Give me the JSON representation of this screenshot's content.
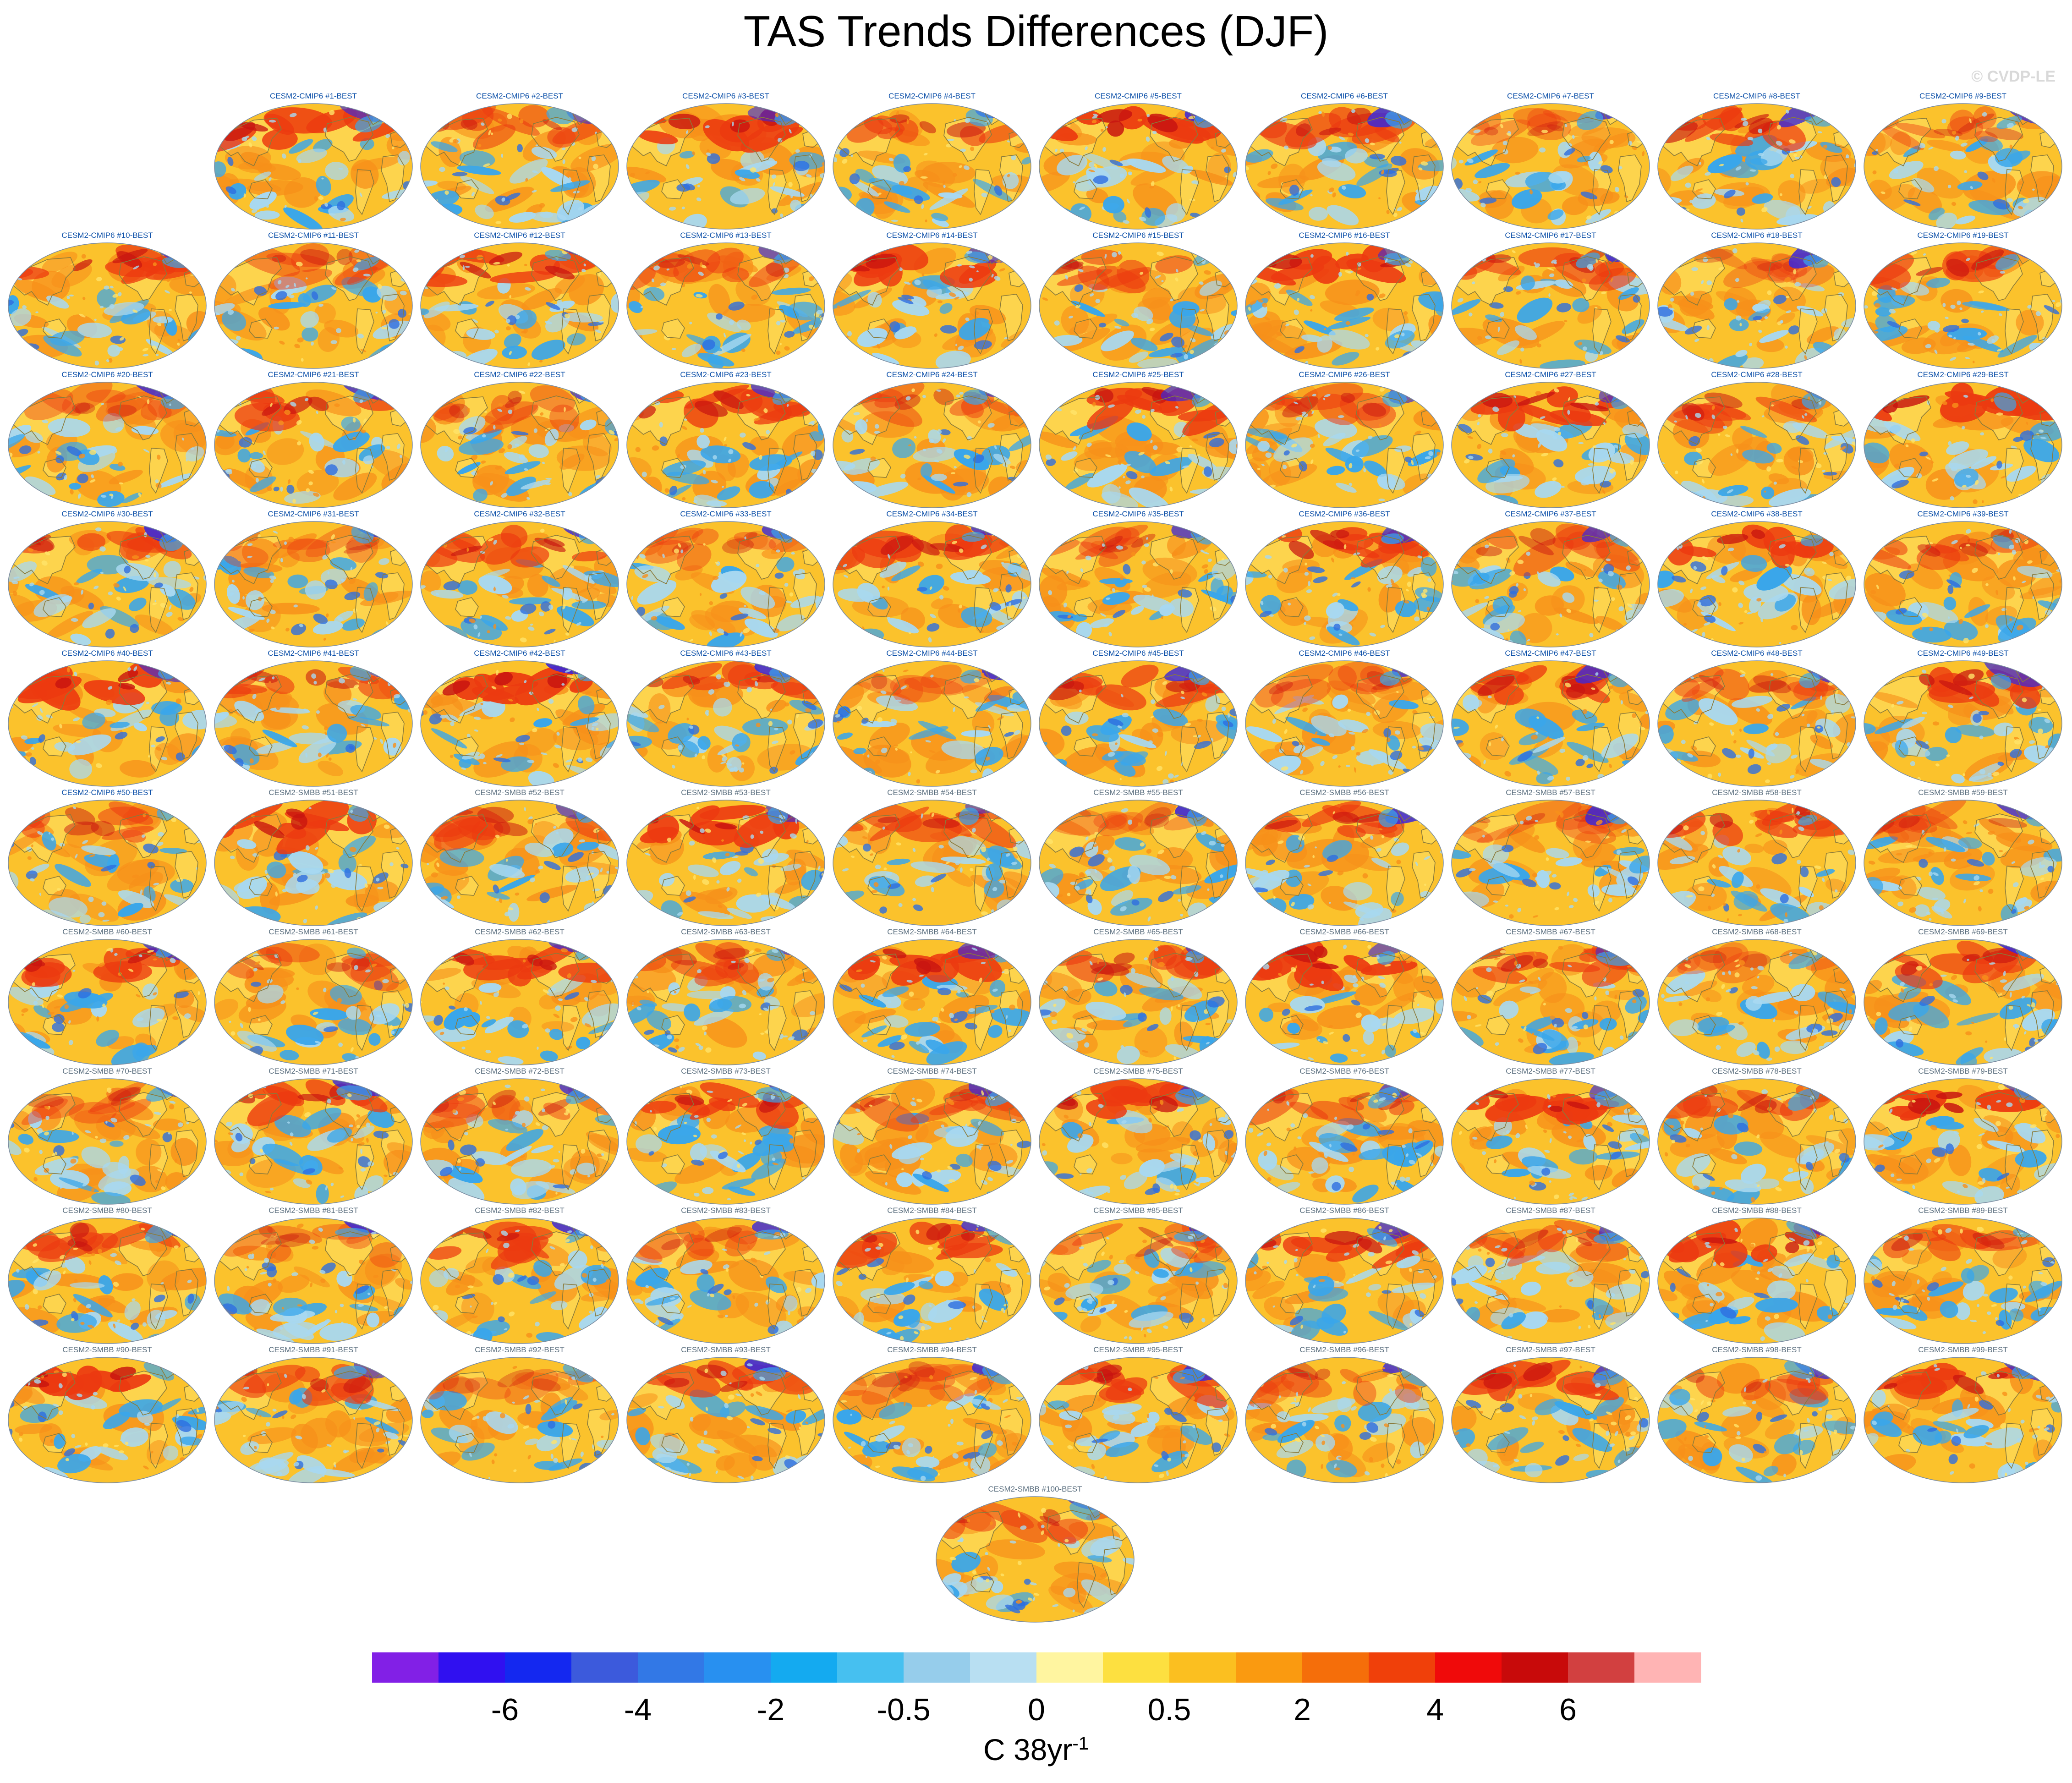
{
  "title": "TAS Trends Differences (DJF)",
  "watermark": "© CVDP-LE",
  "units": {
    "base": "C 38yr",
    "superscript": "-1"
  },
  "chart_data": {
    "type": "heatmap",
    "title": "TAS Trends Differences (DJF)",
    "panels": [
      "CESM2-CMIP6 #1-BEST",
      "CESM2-CMIP6 #2-BEST",
      "CESM2-CMIP6 #3-BEST",
      "CESM2-CMIP6 #4-BEST",
      "CESM2-CMIP6 #5-BEST",
      "CESM2-CMIP6 #6-BEST",
      "CESM2-CMIP6 #7-BEST",
      "CESM2-CMIP6 #8-BEST",
      "CESM2-CMIP6 #9-BEST",
      "CESM2-CMIP6 #10-BEST",
      "CESM2-CMIP6 #11-BEST",
      "CESM2-CMIP6 #12-BEST",
      "CESM2-CMIP6 #13-BEST",
      "CESM2-CMIP6 #14-BEST",
      "CESM2-CMIP6 #15-BEST",
      "CESM2-CMIP6 #16-BEST",
      "CESM2-CMIP6 #17-BEST",
      "CESM2-CMIP6 #18-BEST",
      "CESM2-CMIP6 #19-BEST",
      "CESM2-CMIP6 #20-BEST",
      "CESM2-CMIP6 #21-BEST",
      "CESM2-CMIP6 #22-BEST",
      "CESM2-CMIP6 #23-BEST",
      "CESM2-CMIP6 #24-BEST",
      "CESM2-CMIP6 #25-BEST",
      "CESM2-CMIP6 #26-BEST",
      "CESM2-CMIP6 #27-BEST",
      "CESM2-CMIP6 #28-BEST",
      "CESM2-CMIP6 #29-BEST",
      "CESM2-CMIP6 #30-BEST",
      "CESM2-CMIP6 #31-BEST",
      "CESM2-CMIP6 #32-BEST",
      "CESM2-CMIP6 #33-BEST",
      "CESM2-CMIP6 #34-BEST",
      "CESM2-CMIP6 #35-BEST",
      "CESM2-CMIP6 #36-BEST",
      "CESM2-CMIP6 #37-BEST",
      "CESM2-CMIP6 #38-BEST",
      "CESM2-CMIP6 #39-BEST",
      "CESM2-CMIP6 #40-BEST",
      "CESM2-CMIP6 #41-BEST",
      "CESM2-CMIP6 #42-BEST",
      "CESM2-CMIP6 #43-BEST",
      "CESM2-CMIP6 #44-BEST",
      "CESM2-CMIP6 #45-BEST",
      "CESM2-CMIP6 #46-BEST",
      "CESM2-CMIP6 #47-BEST",
      "CESM2-CMIP6 #48-BEST",
      "CESM2-CMIP6 #49-BEST",
      "CESM2-CMIP6 #50-BEST",
      "CESM2-SMBB #51-BEST",
      "CESM2-SMBB #52-BEST",
      "CESM2-SMBB #53-BEST",
      "CESM2-SMBB #54-BEST",
      "CESM2-SMBB #55-BEST",
      "CESM2-SMBB #56-BEST",
      "CESM2-SMBB #57-BEST",
      "CESM2-SMBB #58-BEST",
      "CESM2-SMBB #59-BEST",
      "CESM2-SMBB #60-BEST",
      "CESM2-SMBB #61-BEST",
      "CESM2-SMBB #62-BEST",
      "CESM2-SMBB #63-BEST",
      "CESM2-SMBB #64-BEST",
      "CESM2-SMBB #65-BEST",
      "CESM2-SMBB #66-BEST",
      "CESM2-SMBB #67-BEST",
      "CESM2-SMBB #68-BEST",
      "CESM2-SMBB #69-BEST",
      "CESM2-SMBB #70-BEST",
      "CESM2-SMBB #71-BEST",
      "CESM2-SMBB #72-BEST",
      "CESM2-SMBB #73-BEST",
      "CESM2-SMBB #74-BEST",
      "CESM2-SMBB #75-BEST",
      "CESM2-SMBB #76-BEST",
      "CESM2-SMBB #77-BEST",
      "CESM2-SMBB #78-BEST",
      "CESM2-SMBB #79-BEST",
      "CESM2-SMBB #80-BEST",
      "CESM2-SMBB #81-BEST",
      "CESM2-SMBB #82-BEST",
      "CESM2-SMBB #83-BEST",
      "CESM2-SMBB #84-BEST",
      "CESM2-SMBB #85-BEST",
      "CESM2-SMBB #86-BEST",
      "CESM2-SMBB #87-BEST",
      "CESM2-SMBB #88-BEST",
      "CESM2-SMBB #89-BEST",
      "CESM2-SMBB #90-BEST",
      "CESM2-SMBB #91-BEST",
      "CESM2-SMBB #92-BEST",
      "CESM2-SMBB #93-BEST",
      "CESM2-SMBB #94-BEST",
      "CESM2-SMBB #95-BEST",
      "CESM2-SMBB #96-BEST",
      "CESM2-SMBB #97-BEST",
      "CESM2-SMBB #98-BEST",
      "CESM2-SMBB #99-BEST",
      "CESM2-SMBB #100-BEST"
    ],
    "colorbar": {
      "label": "C 38yr-1",
      "tick_labels": [
        "-6",
        "-4",
        "-2",
        "-0.5",
        "0",
        "0.5",
        "2",
        "4",
        "6"
      ],
      "colors": [
        "#8220e6",
        "#3010f0",
        "#1428f0",
        "#3c5adc",
        "#3278e6",
        "#2890f0",
        "#14aaf0",
        "#46c0f0",
        "#96cdeb",
        "#b8dff2",
        "#fff5a0",
        "#fde040",
        "#fbbf20",
        "#fa9a10",
        "#f56e0a",
        "#f0400a",
        "#f00a0a",
        "#c80a0a",
        "#d24040",
        "#ffb4b4"
      ]
    },
    "map_colors": {
      "ocean_base": "#fbc22c",
      "land": "#ffe36a",
      "cool_light": "#a8d8f0",
      "cool": "#3aa6ea",
      "cool_deep": "#2e6ee0",
      "warm": "#f7901a",
      "hot": "#ec3a10",
      "hot_deep": "#c81410",
      "polar_blue": "#3c28d8",
      "coast": "#8a7a3a",
      "edge": "#7a8ba0"
    }
  }
}
